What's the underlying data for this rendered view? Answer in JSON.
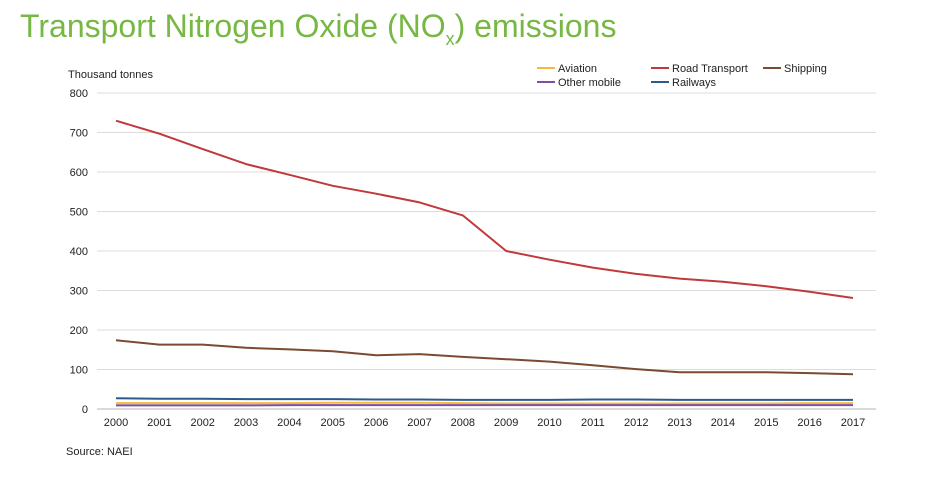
{
  "title": {
    "pre": "Transport Nitrogen Oxide (NO",
    "sub": "x",
    "post": ") emissions"
  },
  "source": "Source: NAEI",
  "chart_data": {
    "type": "line",
    "title": "",
    "xlabel": "",
    "ylabel": "Thousand tonnes",
    "ylim": [
      0,
      800
    ],
    "yticks": [
      0,
      100,
      200,
      300,
      400,
      500,
      600,
      700,
      800
    ],
    "grid": true,
    "legend_position": "top-right",
    "x": [
      "2000",
      "2001",
      "2002",
      "2003",
      "2004",
      "2005",
      "2006",
      "2007",
      "2008",
      "2009",
      "2010",
      "2011",
      "2012",
      "2013",
      "2014",
      "2015",
      "2016",
      "2017"
    ],
    "series": [
      {
        "name": "Aviation",
        "color": "#f6b93b",
        "values": [
          15,
          15,
          15,
          15,
          15,
          16,
          16,
          16,
          15,
          14,
          14,
          14,
          14,
          14,
          14,
          14,
          15,
          15
        ]
      },
      {
        "name": "Road Transport",
        "color": "#c0393b",
        "values": [
          730,
          697,
          658,
          620,
          593,
          565,
          545,
          523,
          490,
          400,
          378,
          358,
          342,
          330,
          322,
          311,
          297,
          281
        ]
      },
      {
        "name": "Shipping",
        "color": "#7a4b32",
        "values": [
          174,
          163,
          163,
          155,
          151,
          146,
          136,
          139,
          132,
          126,
          120,
          111,
          101,
          93,
          93,
          93,
          91,
          88
        ]
      },
      {
        "name": "Other mobile",
        "color": "#7d4fa0",
        "values": [
          9,
          9,
          9,
          9,
          10,
          10,
          10,
          10,
          10,
          10,
          10,
          10,
          10,
          10,
          10,
          10,
          10,
          10
        ]
      },
      {
        "name": "Railways",
        "color": "#2b5b8e",
        "values": [
          27,
          26,
          26,
          25,
          25,
          25,
          24,
          24,
          23,
          23,
          23,
          24,
          24,
          23,
          23,
          23,
          23,
          23
        ]
      }
    ]
  }
}
